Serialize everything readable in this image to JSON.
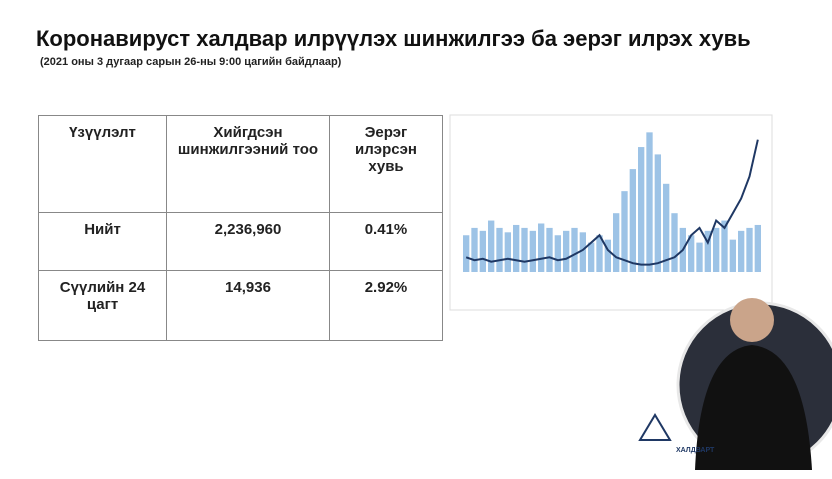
{
  "header": {
    "title": "Коронавируст халдвар илрүүлэх шинжилгээ ба эерэг илрэх хувь",
    "subtitle": "(2021 оны 3 дугаар сарын 26-ны 9:00 цагийн байдлаар)"
  },
  "table": {
    "header": [
      "Үзүүлэлт",
      "Хийгдсэн шинжилгээний тоо",
      "Эерэг илэрсэн хувь"
    ],
    "rows": [
      [
        "Нийт",
        "2,236,960",
        "0.41%"
      ],
      [
        "Сүүлийн 24 цагт",
        "14,936",
        "2.92%"
      ]
    ]
  },
  "chart": {
    "bars": [
      25,
      30,
      28,
      35,
      30,
      27,
      32,
      30,
      28,
      33,
      30,
      25,
      28,
      30,
      27,
      20,
      25,
      22,
      40,
      55,
      70,
      85,
      95,
      80,
      60,
      40,
      30,
      25,
      20,
      28,
      30,
      35,
      22,
      28,
      30,
      32
    ],
    "line": [
      10,
      8,
      9,
      7,
      8,
      9,
      8,
      7,
      8,
      9,
      10,
      8,
      9,
      12,
      15,
      20,
      25,
      15,
      10,
      8,
      6,
      5,
      5,
      6,
      8,
      10,
      15,
      25,
      30,
      20,
      35,
      30,
      40,
      50,
      65,
      90
    ],
    "bar_color": "#9dc3e6",
    "line_color": "#1f3864",
    "ylim": [
      0,
      100
    ]
  },
  "logo": {
    "text": "ХАЛДВАРТ"
  }
}
